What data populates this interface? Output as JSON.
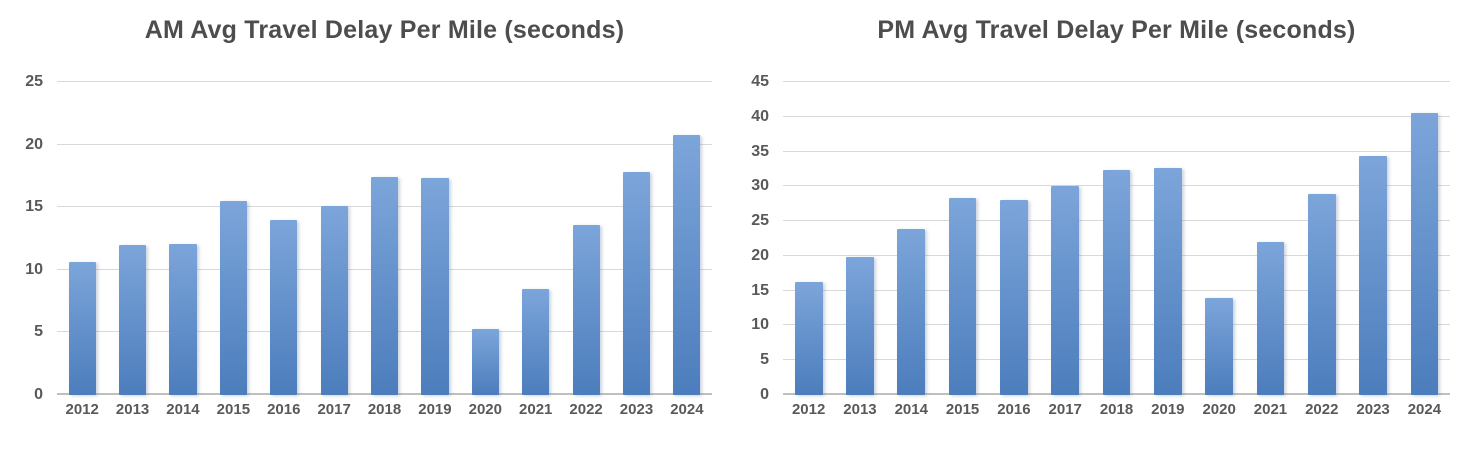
{
  "page": {
    "background": "#ffffff"
  },
  "colors": {
    "bar_gradient_top": "#7CA5DA",
    "bar_gradient_bottom": "#4C7DBC",
    "gridline": "#D9D9D9",
    "axis_line": "#BFBFBF",
    "tick_text": "#595959",
    "title_text": "#4D4D4D"
  },
  "chart_data": [
    {
      "type": "bar",
      "title": "AM Avg Travel Delay Per Mile (seconds)",
      "categories": [
        "2012",
        "2013",
        "2014",
        "2015",
        "2016",
        "2017",
        "2018",
        "2019",
        "2020",
        "2021",
        "2022",
        "2023",
        "2024"
      ],
      "values": [
        10.6,
        12.0,
        12.1,
        15.5,
        14.0,
        15.1,
        17.4,
        17.3,
        5.3,
        8.5,
        13.6,
        17.8,
        20.8
      ],
      "xlabel": "",
      "ylabel": "",
      "ylim": [
        0,
        25
      ],
      "yticks": [
        0,
        5,
        10,
        15,
        20,
        25
      ],
      "grid": true,
      "legend": "none"
    },
    {
      "type": "bar",
      "title": "PM Avg Travel Delay Per Mile (seconds)",
      "categories": [
        "2012",
        "2013",
        "2014",
        "2015",
        "2016",
        "2017",
        "2018",
        "2019",
        "2020",
        "2021",
        "2022",
        "2023",
        "2024"
      ],
      "values": [
        16.2,
        19.9,
        23.8,
        28.3,
        28.0,
        30.1,
        32.4,
        32.6,
        13.9,
        22.0,
        28.9,
        34.4,
        40.5
      ],
      "xlabel": "",
      "ylabel": "",
      "ylim": [
        0,
        45
      ],
      "yticks": [
        0,
        5,
        10,
        15,
        20,
        25,
        30,
        35,
        40,
        45
      ],
      "grid": true,
      "legend": "none"
    }
  ]
}
